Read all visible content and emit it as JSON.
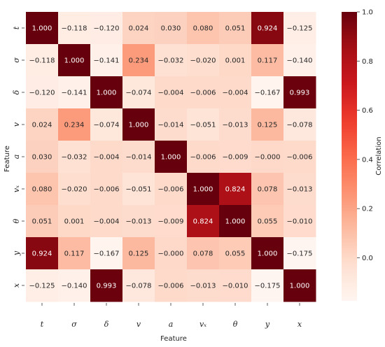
{
  "chart_data": {
    "type": "heatmap",
    "rows": [
      "t",
      "σ",
      "δ",
      "v",
      "a",
      "vₓ",
      "θ",
      "y",
      "x"
    ],
    "cols": [
      "t",
      "σ",
      "δ",
      "v",
      "a",
      "vₓ",
      "θ",
      "y",
      "x"
    ],
    "values": [
      [
        1.0,
        -0.118,
        -0.12,
        0.024,
        0.03,
        0.08,
        0.051,
        0.924,
        -0.125
      ],
      [
        -0.118,
        1.0,
        -0.141,
        0.234,
        -0.032,
        -0.02,
        0.001,
        0.117,
        -0.14
      ],
      [
        -0.12,
        -0.141,
        1.0,
        -0.074,
        -0.004,
        -0.006,
        -0.004,
        -0.167,
        0.993
      ],
      [
        0.024,
        0.234,
        -0.074,
        1.0,
        -0.014,
        -0.051,
        -0.013,
        0.125,
        -0.078
      ],
      [
        0.03,
        -0.032,
        -0.004,
        -0.014,
        1.0,
        -0.006,
        -0.009,
        -0.0,
        -0.006
      ],
      [
        0.08,
        -0.02,
        -0.006,
        -0.051,
        -0.006,
        1.0,
        0.824,
        0.078,
        -0.013
      ],
      [
        0.051,
        0.001,
        -0.004,
        -0.013,
        -0.009,
        0.824,
        1.0,
        0.055,
        -0.01
      ],
      [
        0.924,
        0.117,
        -0.167,
        0.125,
        -0.0,
        0.078,
        0.055,
        1.0,
        -0.175
      ],
      [
        -0.125,
        -0.14,
        0.993,
        -0.078,
        -0.006,
        -0.013,
        -0.01,
        -0.175,
        1.0
      ]
    ],
    "cell_labels": [
      [
        "1.000",
        "−0.118",
        "−0.120",
        "0.024",
        "0.030",
        "0.080",
        "0.051",
        "0.924",
        "−0.125"
      ],
      [
        "−0.118",
        "1.000",
        "−0.141",
        "0.234",
        "−0.032",
        "−0.020",
        "0.001",
        "0.117",
        "−0.140"
      ],
      [
        "−0.120",
        "−0.141",
        "1.000",
        "−0.074",
        "−0.004",
        "−0.006",
        "−0.004",
        "−0.167",
        "0.993"
      ],
      [
        "0.024",
        "0.234",
        "−0.074",
        "1.000",
        "−0.014",
        "−0.051",
        "−0.013",
        "0.125",
        "−0.078"
      ],
      [
        "0.030",
        "−0.032",
        "−0.004",
        "−0.014",
        "1.000",
        "−0.006",
        "−0.009",
        "−0.000",
        "−0.006"
      ],
      [
        "0.080",
        "−0.020",
        "−0.006",
        "−0.051",
        "−0.006",
        "1.000",
        "0.824",
        "0.078",
        "−0.013"
      ],
      [
        "0.051",
        "0.001",
        "−0.004",
        "−0.013",
        "−0.009",
        "0.824",
        "1.000",
        "0.055",
        "−0.010"
      ],
      [
        "0.924",
        "0.117",
        "−0.167",
        "0.125",
        "−0.000",
        "0.078",
        "0.055",
        "1.000",
        "−0.175"
      ],
      [
        "−0.125",
        "−0.140",
        "0.993",
        "−0.078",
        "−0.006",
        "−0.013",
        "−0.010",
        "−0.175",
        "1.000"
      ]
    ],
    "xlabel": "Feature",
    "ylabel": "Feature",
    "colorbar": {
      "label": "Correlation",
      "vmin": -0.175,
      "vmax": 1.0,
      "ticks": [
        0.0,
        0.2,
        0.4,
        0.6,
        0.8,
        1.0
      ],
      "tick_labels": [
        "0.0",
        "0.2",
        "0.4",
        "0.6",
        "0.8",
        "1.0"
      ],
      "colormap": "Reds",
      "low_color": "#fff5f0",
      "high_color": "#67000d"
    },
    "legend_position": "right"
  }
}
